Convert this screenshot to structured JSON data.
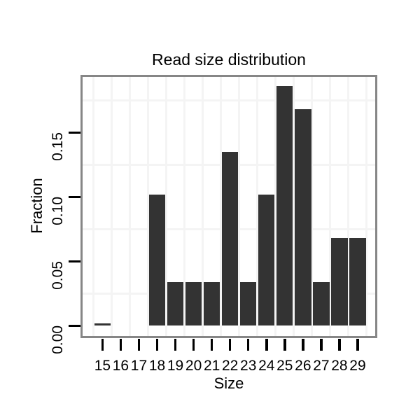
{
  "chart_data": {
    "type": "bar",
    "title": "Read size distribution",
    "xlabel": "Size",
    "ylabel": "Fraction",
    "categories": [
      "15",
      "16",
      "17",
      "18",
      "19",
      "20",
      "21",
      "22",
      "23",
      "24",
      "25",
      "26",
      "27",
      "28",
      "29"
    ],
    "values": [
      0.002,
      0,
      0,
      0.102,
      0.034,
      0.034,
      0.034,
      0.135,
      0.034,
      0.102,
      0.186,
      0.168,
      0.034,
      0.068,
      0.068
    ],
    "yticks": {
      "values": [
        0.0,
        0.05,
        0.1,
        0.15
      ],
      "labels": [
        "0.00",
        "0.05",
        "0.10",
        "0.15"
      ]
    },
    "ylim": [
      -0.009,
      0.195
    ],
    "grid": "minor-only",
    "minor_gridlines_y": [
      0.025,
      0.075,
      0.125,
      0.175
    ],
    "legend": "none",
    "colors": {
      "bar": "#333333",
      "grid_minor": "#f4f4f4",
      "panel_border": "#868686",
      "background": "#ffffff",
      "text": "#000000",
      "tick_marks": "#000000"
    }
  }
}
